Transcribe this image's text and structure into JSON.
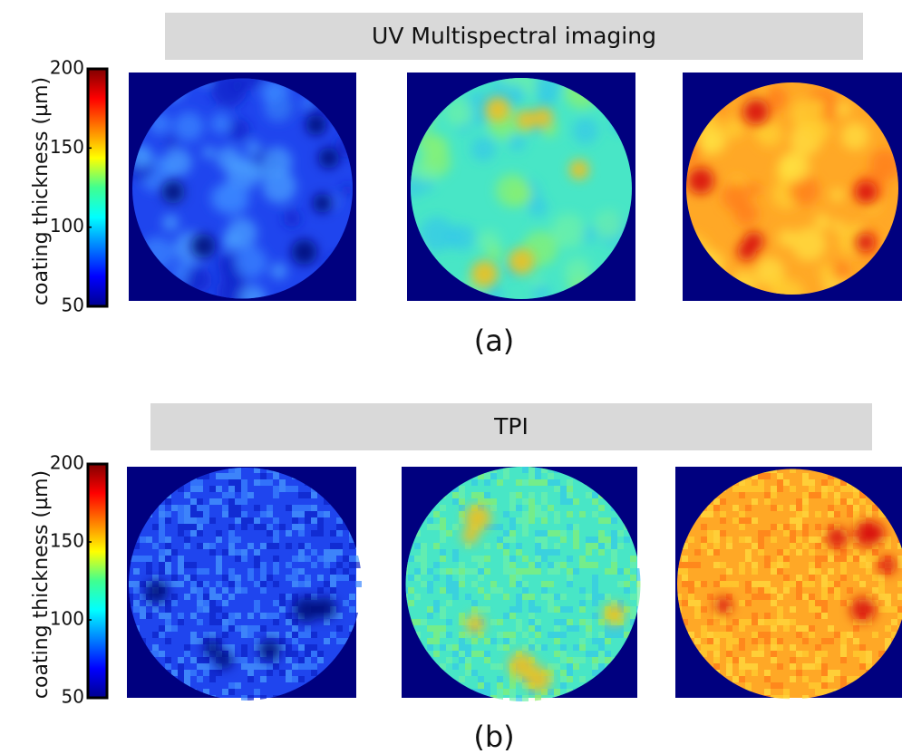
{
  "panels": [
    {
      "title": "UV Multispectral imaging",
      "label": "(a)",
      "colorbar": {
        "label": "coating thickness (µm)",
        "ticks": [
          50,
          100,
          150,
          200
        ]
      }
    },
    {
      "title": "TPI",
      "label": "(b)",
      "colorbar": {
        "label": "coating thickness (µm)",
        "ticks": [
          50,
          100,
          150,
          200
        ]
      }
    }
  ]
}
